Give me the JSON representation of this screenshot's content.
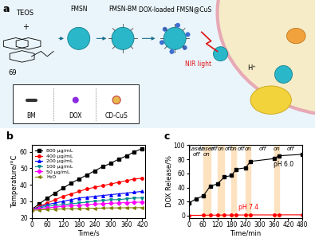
{
  "diagram": {
    "panel_label": "a",
    "reactants": [
      "TEOS",
      "+"
    ],
    "compound_number": "69",
    "steps": [
      "FMSN",
      "FMSN-BM",
      "DOX-loaded FMSN@CuS"
    ],
    "key": [
      "BM",
      "DOX",
      "CD-CuS"
    ],
    "stimuli": [
      "NIR light",
      "H⁺"
    ]
  },
  "chart_data": [
    {
      "type": "line",
      "title": "b",
      "x_label": "Time/s",
      "y_label": "Temperature/°C",
      "x": [
        0,
        30,
        60,
        90,
        120,
        150,
        180,
        210,
        240,
        270,
        300,
        330,
        360,
        390,
        420
      ],
      "xlim": [
        0,
        430
      ],
      "xticks": [
        0,
        60,
        120,
        180,
        240,
        300,
        360,
        420
      ],
      "ylim": [
        20,
        64
      ],
      "yticks": [
        20,
        30,
        40,
        50,
        60
      ],
      "legend": "upper left",
      "series": [
        {
          "name": "800 μg/mL",
          "color": "#000000",
          "marker": "square",
          "line_style": "solid",
          "values": [
            25,
            28.5,
            32,
            35,
            38,
            41,
            43.5,
            46,
            48.5,
            51,
            53,
            55.5,
            57.5,
            60,
            62
          ]
        },
        {
          "name": "400 μg/mL",
          "color": "#ff0000",
          "marker": "circle",
          "line_style": "solid",
          "values": [
            25,
            27,
            29,
            31,
            33,
            34.5,
            36,
            37.5,
            38.5,
            39.5,
            40.5,
            41.5,
            42.5,
            43.5,
            44
          ]
        },
        {
          "name": "200 μg/mL",
          "color": "#0000ff",
          "marker": "triangle_up",
          "line_style": "solid",
          "values": [
            25,
            26.5,
            28,
            29,
            30,
            31,
            32,
            32.5,
            33,
            33.5,
            34,
            34.5,
            35,
            35.5,
            36
          ]
        },
        {
          "name": "100 μg/mL",
          "color": "#008b8b",
          "marker": "triangle_down",
          "line_style": "solid",
          "values": [
            25,
            26,
            27,
            27.5,
            28,
            28.5,
            29,
            29.5,
            30,
            30.5,
            31,
            31,
            31.5,
            32,
            32
          ]
        },
        {
          "name": "50 μg/mL",
          "color": "#ff00ff",
          "marker": "diamond",
          "line_style": "solid",
          "values": [
            25,
            25.5,
            26,
            26.5,
            27,
            27.3,
            27.6,
            28,
            28.3,
            28.6,
            28.8,
            29,
            29.2,
            29.4,
            29.5
          ]
        },
        {
          "name": "H₂O",
          "color": "#808000",
          "marker": "triangle_left",
          "line_style": "solid",
          "values": [
            24.5,
            24.8,
            25,
            25.2,
            25.4,
            25.5,
            25.6,
            25.7,
            25.8,
            25.9,
            26,
            26,
            26.1,
            26.1,
            26.2
          ]
        }
      ]
    },
    {
      "type": "line",
      "title": "c",
      "x_label": "Time/min",
      "y_label": "DOX Release/%",
      "xlim": [
        0,
        480
      ],
      "xticks": [
        0,
        60,
        120,
        180,
        240,
        300,
        360,
        420,
        480
      ],
      "ylim": [
        -3,
        100
      ],
      "yticks": [
        0,
        20,
        40,
        60,
        80,
        100
      ],
      "laser_on_intervals": [
        [
          60,
          90
        ],
        [
          120,
          150
        ],
        [
          180,
          200
        ],
        [
          240,
          260
        ],
        [
          360,
          380
        ]
      ],
      "on_labels": [
        "Laser\non",
        "on",
        "on",
        "on",
        "on"
      ],
      "off_labels": [
        "Laser\noff",
        "off",
        "off",
        "off",
        "off",
        "off"
      ],
      "series": [
        {
          "name": "pH 6.0",
          "color": "#000000",
          "marker": "square",
          "line_style": "solid",
          "x": [
            0,
            30,
            60,
            90,
            120,
            150,
            180,
            200,
            240,
            260,
            360,
            380,
            480
          ],
          "values": [
            18,
            24,
            28,
            42,
            45,
            55,
            57,
            66,
            68,
            77,
            81,
            85,
            87
          ]
        },
        {
          "name": "pH 7.4",
          "color": "#ff0000",
          "marker": "circle",
          "line_style": "solid",
          "x": [
            0,
            60,
            90,
            120,
            150,
            180,
            200,
            240,
            260,
            360,
            380,
            480
          ],
          "values": [
            0.5,
            0.6,
            0.8,
            0.8,
            0.9,
            0.9,
            1,
            1,
            1.1,
            1.1,
            1.2,
            1.2
          ]
        }
      ]
    }
  ]
}
